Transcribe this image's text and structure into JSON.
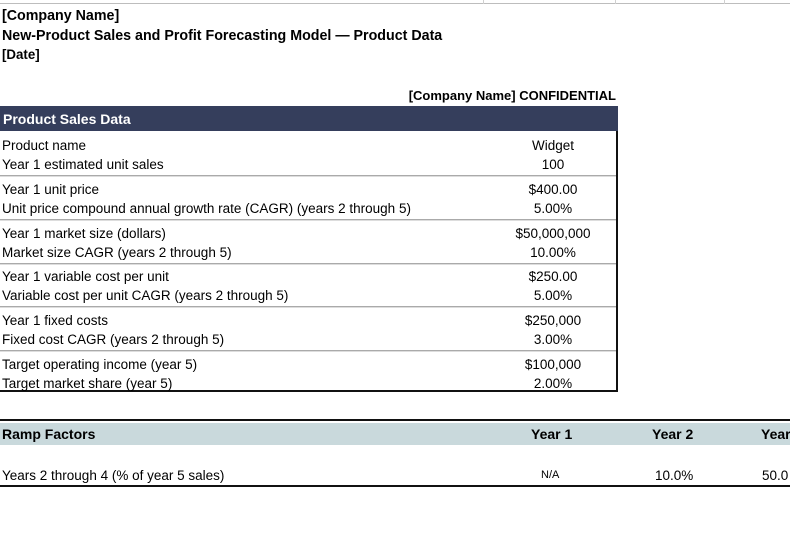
{
  "header": {
    "company": "[Company Name]",
    "title": "New-Product Sales and Profit Forecasting Model — Product Data",
    "date": "[Date]",
    "confidential": "[Company Name] CONFIDENTIAL"
  },
  "product_sales": {
    "title": "Product Sales Data",
    "rows": [
      {
        "label": "Product name",
        "value": "Widget"
      },
      {
        "label": "Year 1 estimated unit sales",
        "value": "100"
      },
      {
        "label": "Year 1 unit price",
        "value": "$400.00"
      },
      {
        "label": "Unit price compound annual growth rate (CAGR) (years 2 through 5)",
        "value": "5.00%"
      },
      {
        "label": "Year 1 market size (dollars)",
        "value": "$50,000,000"
      },
      {
        "label": "Market size CAGR (years 2 through 5)",
        "value": "10.00%"
      },
      {
        "label": "Year 1 variable cost per unit",
        "value": "$250.00"
      },
      {
        "label": "Variable cost per unit CAGR (years 2 through 5)",
        "value": "5.00%"
      },
      {
        "label": "Year 1 fixed costs",
        "value": "$250,000"
      },
      {
        "label": "Fixed cost CAGR (years 2 through 5)",
        "value": "3.00%"
      },
      {
        "label": "Target operating income (year 5)",
        "value": "$100,000"
      },
      {
        "label": "Target market share (year 5)",
        "value": "2.00%"
      }
    ]
  },
  "ramp": {
    "title": "Ramp Factors",
    "columns": [
      "Year 1",
      "Year 2",
      "Year"
    ],
    "row": {
      "label": "Years 2 through 4 (% of year 5 sales)",
      "values": [
        "N/A",
        "10.0%",
        "50.0"
      ]
    }
  },
  "colors": {
    "header_bg": "#353e5c",
    "ramp_header_bg": "#c9d9dc"
  }
}
